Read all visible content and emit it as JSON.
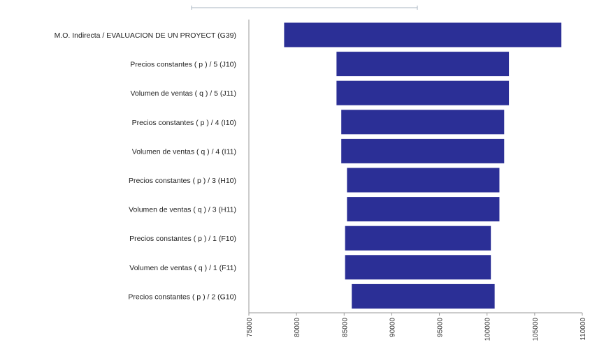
{
  "chart_data": {
    "type": "bar",
    "orientation": "horizontal",
    "chart_style": "tornado",
    "categories": [
      "M.O. Indirecta / EVALUACION DE UN PROYECT (G39)",
      "Precios constantes  ( p ) / 5 (J10)",
      "Volumen de ventas  ( q ) / 5 (J11)",
      "Precios constantes  ( p ) / 4 (I10)",
      "Volumen de ventas  ( q ) / 4 (I11)",
      "Precios constantes  ( p ) / 3 (H10)",
      "Volumen de ventas  ( q ) / 3 (H11)",
      "Precios constantes  ( p ) / 1 (F10)",
      "Volumen de ventas  ( q ) / 1 (F11)",
      "Precios constantes  ( p ) / 2 (G10)"
    ],
    "ranges": [
      [
        78700,
        107800
      ],
      [
        84200,
        102300
      ],
      [
        84200,
        102300
      ],
      [
        84700,
        101800
      ],
      [
        84700,
        101800
      ],
      [
        85300,
        101300
      ],
      [
        85300,
        101300
      ],
      [
        85100,
        100400
      ],
      [
        85100,
        100400
      ],
      [
        85800,
        100800
      ]
    ],
    "xlim": [
      75000,
      110000
    ],
    "xticks": [
      75000,
      80000,
      85000,
      90000,
      95000,
      100000,
      105000,
      110000
    ],
    "xtick_labels": [
      "75000",
      "80000",
      "85000",
      "90000",
      "95000",
      "100000",
      "105000",
      "110000"
    ],
    "bar_color": "#2b2f96",
    "grid": false,
    "legend": "none",
    "title": "",
    "xlabel": "",
    "ylabel": ""
  }
}
